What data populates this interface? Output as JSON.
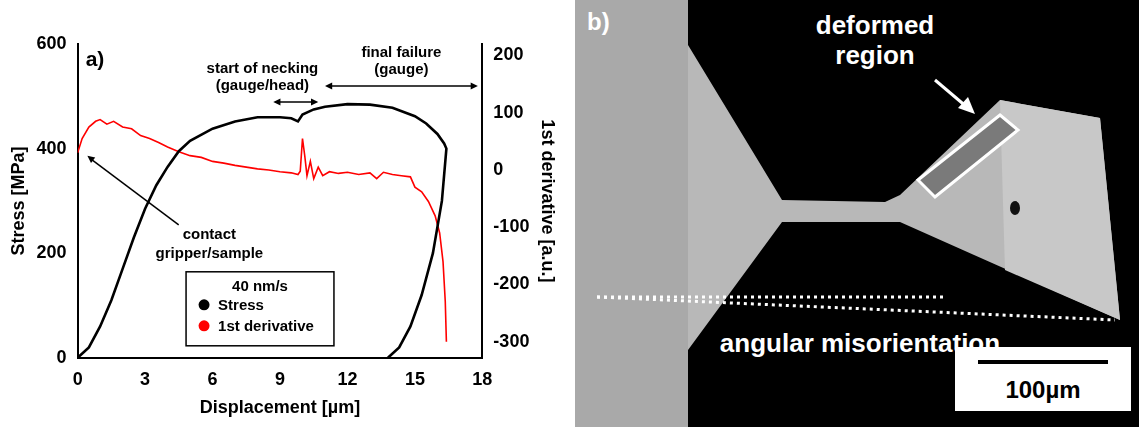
{
  "chart_data": {
    "type": "line",
    "panel": "a)",
    "x_label": "Displacement [µm]",
    "y_label": "Stress [MPa]",
    "y2_label": "1st derivative [a.u.]",
    "xlim": [
      0,
      18
    ],
    "xticks": [
      0,
      3,
      6,
      9,
      12,
      15,
      18
    ],
    "ylim": [
      0,
      600
    ],
    "yticks": [
      0,
      200,
      400,
      600
    ],
    "y2lim": [
      -328,
      220
    ],
    "y2ticks": [
      -300,
      -200,
      -100,
      0,
      100,
      200
    ],
    "grid": false,
    "legend": "bottom",
    "legend_title": "40 nm/s",
    "series": [
      {
        "name": "Stress",
        "color": "#000000",
        "line_style": "solid",
        "x": [
          0,
          0.5,
          1,
          1.5,
          2,
          2.5,
          3,
          3.5,
          4,
          4.5,
          5,
          6,
          7,
          8,
          9,
          9.5,
          9.8,
          10,
          10.5,
          11,
          12,
          13,
          14,
          15,
          15.5,
          16,
          16.3,
          16.4,
          16.2,
          15.8,
          15.3,
          14.8,
          14.3,
          13.8
        ],
        "values": [
          0,
          20,
          60,
          110,
          170,
          230,
          285,
          330,
          365,
          395,
          415,
          438,
          452,
          460,
          460,
          458,
          452,
          465,
          475,
          480,
          485,
          484,
          478,
          462,
          448,
          428,
          410,
          400,
          300,
          200,
          120,
          60,
          20,
          0
        ]
      },
      {
        "name": "1st derivative",
        "color": "#ff0000",
        "line_style": "solid",
        "axis": "y2",
        "x": [
          0,
          0.2,
          0.5,
          0.8,
          1,
          1.3,
          1.6,
          2,
          2.4,
          2.8,
          3.2,
          3.6,
          4,
          4.5,
          5,
          5.5,
          6,
          6.5,
          7,
          7.5,
          8,
          8.5,
          9,
          9.5,
          9.8,
          9.9,
          10,
          10.1,
          10.2,
          10.35,
          10.5,
          10.7,
          10.9,
          11.2,
          11.6,
          12,
          12.5,
          13,
          13.3,
          13.6,
          14,
          14.4,
          14.8,
          15,
          15.3,
          15.6,
          15.9,
          16.1,
          16.25,
          16.35,
          16.4
        ],
        "values": [
          30,
          55,
          75,
          85,
          88,
          80,
          85,
          75,
          72,
          60,
          55,
          48,
          40,
          32,
          25,
          22,
          15,
          12,
          8,
          5,
          2,
          0,
          -3,
          -5,
          -8,
          -2,
          55,
          25,
          -10,
          15,
          -15,
          5,
          -10,
          -3,
          -6,
          -4,
          -8,
          -5,
          -15,
          -4,
          -8,
          -10,
          -12,
          -30,
          -38,
          -55,
          -80,
          -110,
          -160,
          -230,
          -300
        ]
      }
    ],
    "annotations": [
      {
        "text": [
          "contact",
          "gripper/sample"
        ],
        "x": 0.3,
        "y": 390
      },
      {
        "text": [
          "start of necking",
          "(gauge/head)"
        ],
        "x_range": [
          8.7,
          10.7
        ]
      },
      {
        "text": [
          "final failure",
          "(gauge)"
        ],
        "x_range": [
          11,
          17.8
        ]
      }
    ]
  },
  "micrograph": {
    "panel": "b)",
    "deformed_region": [
      "deformed",
      "region"
    ],
    "angular_misorientation": "angular misorientation",
    "scale_bar": "100µm"
  }
}
